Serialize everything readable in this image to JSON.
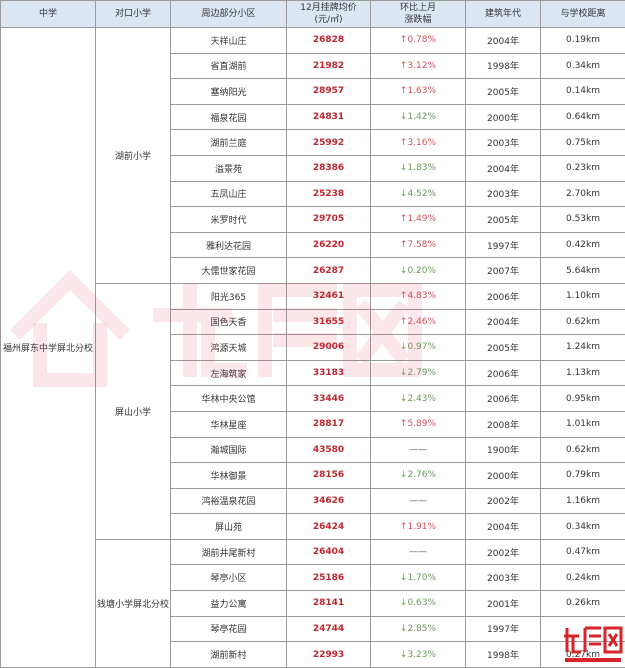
{
  "headers": [
    "中学",
    "对口小学",
    "周边部分小区",
    "12月挂牌均价",
    "(元/㎡)",
    "环比上月",
    "涨跌幅",
    "建筑年代",
    "与学校距离"
  ],
  "middle_school": "福州屏东中学屏北分校",
  "primary_schools": [
    {
      "name": "湖前小学",
      "rows": 10
    },
    {
      "name": "屏山小学",
      "rows": 10
    },
    {
      "name": "钱塘小学屏北分校",
      "rows": 5
    }
  ],
  "rows": [
    [
      "天祥山庄",
      "26828",
      "↑0.78%",
      "2004年",
      "0.19km"
    ],
    [
      "省直湖前",
      "21982",
      "↑3.12%",
      "1998年",
      "0.34km"
    ],
    [
      "塞纳阳光",
      "28957",
      "↑1.63%",
      "2005年",
      "0.14km"
    ],
    [
      "福泉花园",
      "24831",
      "↓1.42%",
      "2000年",
      "0.64km"
    ],
    [
      "湖前兰庭",
      "25992",
      "↑3.16%",
      "2003年",
      "0.75km"
    ],
    [
      "溢景苑",
      "28386",
      "↓1.83%",
      "2004年",
      "0.23km"
    ],
    [
      "五凤山庄",
      "25238",
      "↓4.52%",
      "2003年",
      "2.70km"
    ],
    [
      "米罗时代",
      "29705",
      "↑1.49%",
      "2005年",
      "0.53km"
    ],
    [
      "雅利达花园",
      "26220",
      "↑7.58%",
      "1997年",
      "0.42km"
    ],
    [
      "大儒世家花园",
      "26287",
      "↓0.20%",
      "2007年",
      "5.64km"
    ],
    [
      "阳光365",
      "32461",
      "↑4.83%",
      "2006年",
      "1.10km"
    ],
    [
      "国色天香",
      "31655",
      "↑2.46%",
      "2004年",
      "0.62km"
    ],
    [
      "鸿源天城",
      "29006",
      "↓0.97%",
      "2005年",
      "1.24km"
    ],
    [
      "左海筑家",
      "33183",
      "↓2.79%",
      "2006年",
      "1.13km"
    ],
    [
      "华林中央公馆",
      "33446",
      "↓2.43%",
      "2006年",
      "0.95km"
    ],
    [
      "华林星座",
      "28817",
      "↑5.89%",
      "2008年",
      "1.01km"
    ],
    [
      "瀚城国际",
      "43580",
      "——",
      "1900年",
      "0.62km"
    ],
    [
      "华林御景",
      "28156",
      "↓2.76%",
      "2000年",
      "0.79km"
    ],
    [
      "鸿裕温泉花园",
      "34626",
      "——",
      "2002年",
      "1.16km"
    ],
    [
      "屏山苑",
      "26424",
      "↑1.91%",
      "2004年",
      "0.34km"
    ],
    [
      "湖前井尾新村",
      "26404",
      "——",
      "2002年",
      "0.47km"
    ],
    [
      "琴亭小区",
      "25186",
      "↓1.70%",
      "2003年",
      "0.24km"
    ],
    [
      "益力公寓",
      "28141",
      "↓0.63%",
      "2001年",
      "0.26km"
    ],
    [
      "琴亭花园",
      "24744",
      "↓2.85%",
      "1997年",
      ""
    ],
    [
      "湖前新村",
      "22993",
      "↓3.23%",
      "1998年",
      "0.27km"
    ]
  ],
  "watermark": {
    "text": "九房网",
    "url": "www.999house.com"
  },
  "colors": {
    "header_bg": "#dbe6f3",
    "price": "#c0262d",
    "up": "#d0525a",
    "down": "#6f9a60"
  }
}
